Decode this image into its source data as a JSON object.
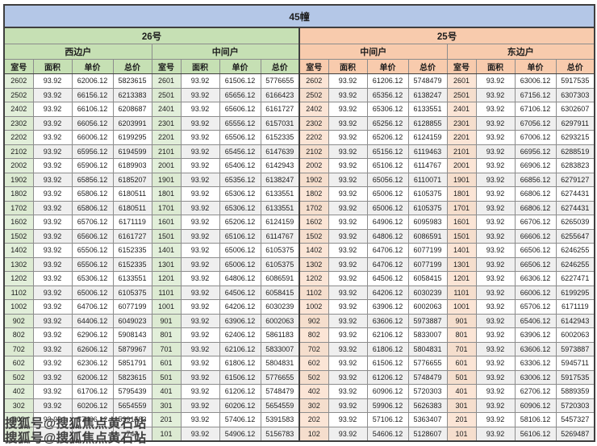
{
  "title": "45幢",
  "columns": [
    "室号",
    "面积",
    "单价",
    "总价"
  ],
  "watermark": {
    "line1": "搜狐号@搜狐焦点黄石站",
    "line2": "搜狐号@搜狐焦点黄石站"
  },
  "colors": {
    "title_bg": "#b4c7e7",
    "building26_bg": "#c6e0b4",
    "building26_room_bg": "#e2efda",
    "building25_bg": "#f8cbad",
    "building25_room_bg": "#fbe5d6",
    "stripe_bg": "#efefef",
    "grid_border": "#8c8c8c"
  },
  "buildings": [
    {
      "label": "26号",
      "theme": "green",
      "units": [
        {
          "label": "西边户",
          "rows": [
            [
              "2602",
              "93.92",
              "62006.12",
              "5823615"
            ],
            [
              "2502",
              "93.92",
              "66156.12",
              "6213383"
            ],
            [
              "2402",
              "93.92",
              "66106.12",
              "6208687"
            ],
            [
              "2302",
              "93.92",
              "66056.12",
              "6203991"
            ],
            [
              "2202",
              "93.92",
              "66006.12",
              "6199295"
            ],
            [
              "2102",
              "93.92",
              "65956.12",
              "6194599"
            ],
            [
              "2002",
              "93.92",
              "65906.12",
              "6189903"
            ],
            [
              "1902",
              "93.92",
              "65856.12",
              "6185207"
            ],
            [
              "1802",
              "93.92",
              "65806.12",
              "6180511"
            ],
            [
              "1702",
              "93.92",
              "65806.12",
              "6180511"
            ],
            [
              "1602",
              "93.92",
              "65706.12",
              "6171119"
            ],
            [
              "1502",
              "93.92",
              "65606.12",
              "6161727"
            ],
            [
              "1402",
              "93.92",
              "65506.12",
              "6152335"
            ],
            [
              "1302",
              "93.92",
              "65506.12",
              "6152335"
            ],
            [
              "1202",
              "93.92",
              "65306.12",
              "6133551"
            ],
            [
              "1102",
              "93.92",
              "65006.12",
              "6105375"
            ],
            [
              "1002",
              "93.92",
              "64706.12",
              "6077199"
            ],
            [
              "902",
              "93.92",
              "64406.12",
              "6049023"
            ],
            [
              "802",
              "93.92",
              "62906.12",
              "5908143"
            ],
            [
              "702",
              "93.92",
              "62606.12",
              "5879967"
            ],
            [
              "602",
              "93.92",
              "62306.12",
              "5851791"
            ],
            [
              "502",
              "93.92",
              "62006.12",
              "5823615"
            ],
            [
              "402",
              "93.92",
              "61706.12",
              "5795439"
            ],
            [
              "302",
              "93.92",
              "60206.12",
              "5654559"
            ],
            [
              "202",
              "93.92",
              "57406.12",
              "5391583"
            ],
            [
              "",
              "",
              "",
              "743"
            ]
          ]
        },
        {
          "label": "中间户",
          "rows": [
            [
              "2601",
              "93.92",
              "61506.12",
              "5776655"
            ],
            [
              "2501",
              "93.92",
              "65656.12",
              "6166423"
            ],
            [
              "2401",
              "93.92",
              "65606.12",
              "6161727"
            ],
            [
              "2301",
              "93.92",
              "65556.12",
              "6157031"
            ],
            [
              "2201",
              "93.92",
              "65506.12",
              "6152335"
            ],
            [
              "2101",
              "93.92",
              "65456.12",
              "6147639"
            ],
            [
              "2001",
              "93.92",
              "65406.12",
              "6142943"
            ],
            [
              "1901",
              "93.92",
              "65356.12",
              "6138247"
            ],
            [
              "1801",
              "93.92",
              "65306.12",
              "6133551"
            ],
            [
              "1701",
              "93.92",
              "65306.12",
              "6133551"
            ],
            [
              "1601",
              "93.92",
              "65206.12",
              "6124159"
            ],
            [
              "1501",
              "93.92",
              "65106.12",
              "6114767"
            ],
            [
              "1401",
              "93.92",
              "65006.12",
              "6105375"
            ],
            [
              "1301",
              "93.92",
              "65006.12",
              "6105375"
            ],
            [
              "1201",
              "93.92",
              "64806.12",
              "6086591"
            ],
            [
              "1101",
              "93.92",
              "64506.12",
              "6058415"
            ],
            [
              "1001",
              "93.92",
              "64206.12",
              "6030239"
            ],
            [
              "901",
              "93.92",
              "63906.12",
              "6002063"
            ],
            [
              "801",
              "93.92",
              "62406.12",
              "5861183"
            ],
            [
              "701",
              "93.92",
              "62106.12",
              "5833007"
            ],
            [
              "601",
              "93.92",
              "61806.12",
              "5804831"
            ],
            [
              "501",
              "93.92",
              "61506.12",
              "5776655"
            ],
            [
              "401",
              "93.92",
              "61206.12",
              "5748479"
            ],
            [
              "301",
              "93.92",
              "60206.12",
              "5654559"
            ],
            [
              "201",
              "93.92",
              "57406.12",
              "5391583"
            ],
            [
              "101",
              "93.92",
              "54906.12",
              "5156783"
            ]
          ]
        }
      ]
    },
    {
      "label": "25号",
      "theme": "orange",
      "units": [
        {
          "label": "中间户",
          "rows": [
            [
              "2602",
              "93.92",
              "61206.12",
              "5748479"
            ],
            [
              "2502",
              "93.92",
              "65356.12",
              "6138247"
            ],
            [
              "2402",
              "93.92",
              "65306.12",
              "6133551"
            ],
            [
              "2302",
              "93.92",
              "65256.12",
              "6128855"
            ],
            [
              "2202",
              "93.92",
              "65206.12",
              "6124159"
            ],
            [
              "2102",
              "93.92",
              "65156.12",
              "6119463"
            ],
            [
              "2002",
              "93.92",
              "65106.12",
              "6114767"
            ],
            [
              "1902",
              "93.92",
              "65056.12",
              "6110071"
            ],
            [
              "1802",
              "93.92",
              "65006.12",
              "6105375"
            ],
            [
              "1702",
              "93.92",
              "65006.12",
              "6105375"
            ],
            [
              "1602",
              "93.92",
              "64906.12",
              "6095983"
            ],
            [
              "1502",
              "93.92",
              "64806.12",
              "6086591"
            ],
            [
              "1402",
              "93.92",
              "64706.12",
              "6077199"
            ],
            [
              "1302",
              "93.92",
              "64706.12",
              "6077199"
            ],
            [
              "1202",
              "93.92",
              "64506.12",
              "6058415"
            ],
            [
              "1102",
              "93.92",
              "64206.12",
              "6030239"
            ],
            [
              "1002",
              "93.92",
              "63906.12",
              "6002063"
            ],
            [
              "902",
              "93.92",
              "63606.12",
              "5973887"
            ],
            [
              "802",
              "93.92",
              "62106.12",
              "5833007"
            ],
            [
              "702",
              "93.92",
              "61806.12",
              "5804831"
            ],
            [
              "602",
              "93.92",
              "61506.12",
              "5776655"
            ],
            [
              "502",
              "93.92",
              "61206.12",
              "5748479"
            ],
            [
              "402",
              "93.92",
              "60906.12",
              "5720303"
            ],
            [
              "302",
              "93.92",
              "59906.12",
              "5626383"
            ],
            [
              "202",
              "93.92",
              "57106.12",
              "5363407"
            ],
            [
              "102",
              "93.92",
              "54606.12",
              "5128607"
            ]
          ]
        },
        {
          "label": "东边户",
          "rows": [
            [
              "2601",
              "93.92",
              "63006.12",
              "5917535"
            ],
            [
              "2501",
              "93.92",
              "67156.12",
              "6307303"
            ],
            [
              "2401",
              "93.92",
              "67106.12",
              "6302607"
            ],
            [
              "2301",
              "93.92",
              "67056.12",
              "6297911"
            ],
            [
              "2201",
              "93.92",
              "67006.12",
              "6293215"
            ],
            [
              "2101",
              "93.92",
              "66956.12",
              "6288519"
            ],
            [
              "2001",
              "93.92",
              "66906.12",
              "6283823"
            ],
            [
              "1901",
              "93.92",
              "66856.12",
              "6279127"
            ],
            [
              "1801",
              "93.92",
              "66806.12",
              "6274431"
            ],
            [
              "1701",
              "93.92",
              "66806.12",
              "6274431"
            ],
            [
              "1601",
              "93.92",
              "66706.12",
              "6265039"
            ],
            [
              "1501",
              "93.92",
              "66606.12",
              "6255647"
            ],
            [
              "1401",
              "93.92",
              "66506.12",
              "6246255"
            ],
            [
              "1301",
              "93.92",
              "66506.12",
              "6246255"
            ],
            [
              "1201",
              "93.92",
              "66306.12",
              "6227471"
            ],
            [
              "1101",
              "93.92",
              "66006.12",
              "6199295"
            ],
            [
              "1001",
              "93.92",
              "65706.12",
              "6171119"
            ],
            [
              "901",
              "93.92",
              "65406.12",
              "6142943"
            ],
            [
              "801",
              "93.92",
              "63906.12",
              "6002063"
            ],
            [
              "701",
              "93.92",
              "63606.12",
              "5973887"
            ],
            [
              "601",
              "93.92",
              "63306.12",
              "5945711"
            ],
            [
              "501",
              "93.92",
              "63006.12",
              "5917535"
            ],
            [
              "401",
              "93.92",
              "62706.12",
              "5889359"
            ],
            [
              "301",
              "93.92",
              "60906.12",
              "5720303"
            ],
            [
              "201",
              "93.92",
              "58106.12",
              "5457327"
            ],
            [
              "101",
              "93.92",
              "56106.12",
              "5269487"
            ]
          ]
        }
      ]
    }
  ]
}
